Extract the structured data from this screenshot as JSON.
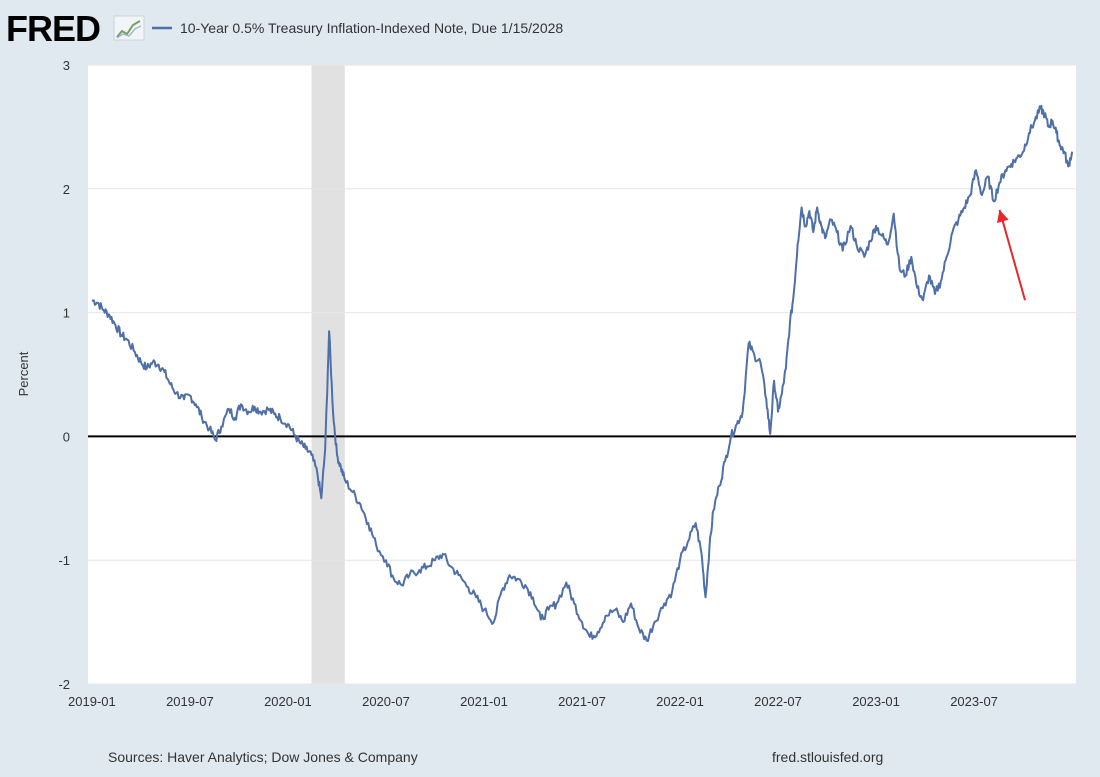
{
  "header": {
    "logo_text": "FRED",
    "legend_label": "10-Year 0.5% Treasury Inflation-Indexed Note, Due 1/15/2028"
  },
  "footer": {
    "sources": "Sources: Haver Analytics; Dow Jones & Company",
    "site": "fred.stlouisfed.org"
  },
  "colors": {
    "background": "#e1e9f0",
    "plot_background": "#ffffff",
    "series": "#4e6fa8",
    "recession_band": "#e1e1e1",
    "zero_line": "#000000",
    "annotation_arrow": "#e8262b",
    "text": "#333333"
  },
  "chart_data": {
    "type": "line",
    "title": "10-Year 0.5% Treasury Inflation-Indexed Note, Due 1/15/2028",
    "xlabel": "",
    "ylabel": "Percent",
    "xlim": [
      2018.98,
      2024.02
    ],
    "ylim": [
      -2,
      3
    ],
    "yticks": [
      -2,
      -1,
      0,
      1,
      2,
      3
    ],
    "xticks": [
      {
        "label": "2019-01",
        "t": 2019.0
      },
      {
        "label": "2019-07",
        "t": 2019.5
      },
      {
        "label": "2020-01",
        "t": 2020.0
      },
      {
        "label": "2020-07",
        "t": 2020.5
      },
      {
        "label": "2021-01",
        "t": 2021.0
      },
      {
        "label": "2021-07",
        "t": 2021.5
      },
      {
        "label": "2022-01",
        "t": 2022.0
      },
      {
        "label": "2022-07",
        "t": 2022.5
      },
      {
        "label": "2023-01",
        "t": 2023.0
      },
      {
        "label": "2023-07",
        "t": 2023.5
      }
    ],
    "grid": "horizontal",
    "recession": {
      "start": 2020.12,
      "end": 2020.29
    },
    "reference_line": 0,
    "annotation": {
      "type": "arrow",
      "from": [
        2023.76,
        1.1
      ],
      "to": [
        2023.63,
        1.83
      ]
    },
    "series": [
      {
        "name": "10-Year 0.5% Treasury Inflation-Indexed Note, Due 1/15/2028",
        "x": [
          2019.0,
          2019.03,
          2019.06,
          2019.09,
          2019.12,
          2019.15,
          2019.18,
          2019.22,
          2019.25,
          2019.28,
          2019.31,
          2019.34,
          2019.37,
          2019.4,
          2019.43,
          2019.47,
          2019.5,
          2019.53,
          2019.56,
          2019.6,
          2019.63,
          2019.66,
          2019.7,
          2019.73,
          2019.76,
          2019.8,
          2019.83,
          2019.86,
          2019.9,
          2019.93,
          2019.96,
          2020.0,
          2020.03,
          2020.06,
          2020.09,
          2020.12,
          2020.15,
          2020.17,
          2020.19,
          2020.21,
          2020.23,
          2020.25,
          2020.27,
          2020.29,
          2020.33,
          2020.37,
          2020.41,
          2020.45,
          2020.5,
          2020.54,
          2020.58,
          2020.62,
          2020.67,
          2020.71,
          2020.75,
          2020.79,
          2020.83,
          2020.87,
          2020.92,
          2020.96,
          2021.0,
          2021.05,
          2021.09,
          2021.13,
          2021.17,
          2021.21,
          2021.25,
          2021.29,
          2021.33,
          2021.37,
          2021.42,
          2021.46,
          2021.5,
          2021.54,
          2021.58,
          2021.62,
          2021.67,
          2021.71,
          2021.75,
          2021.79,
          2021.83,
          2021.87,
          2021.92,
          2021.96,
          2022.0,
          2022.04,
          2022.08,
          2022.11,
          2022.13,
          2022.15,
          2022.17,
          2022.2,
          2022.23,
          2022.26,
          2022.29,
          2022.32,
          2022.35,
          2022.38,
          2022.41,
          2022.44,
          2022.46,
          2022.48,
          2022.5,
          2022.52,
          2022.54,
          2022.56,
          2022.58,
          2022.6,
          2022.62,
          2022.64,
          2022.66,
          2022.68,
          2022.7,
          2022.72,
          2022.74,
          2022.77,
          2022.8,
          2022.83,
          2022.87,
          2022.9,
          2022.94,
          2022.97,
          2023.0,
          2023.03,
          2023.06,
          2023.09,
          2023.12,
          2023.15,
          2023.18,
          2023.21,
          2023.24,
          2023.27,
          2023.3,
          2023.33,
          2023.36,
          2023.39,
          2023.42,
          2023.45,
          2023.48,
          2023.51,
          2023.54,
          2023.57,
          2023.6,
          2023.63,
          2023.66,
          2023.69,
          2023.72,
          2023.75,
          2023.78,
          2023.81,
          2023.84,
          2023.86,
          2023.88,
          2023.9,
          2023.92,
          2023.94,
          2023.96,
          2023.98,
          2024.0
        ],
        "y": [
          1.1,
          1.08,
          1.02,
          0.98,
          0.9,
          0.82,
          0.78,
          0.68,
          0.6,
          0.55,
          0.6,
          0.58,
          0.52,
          0.42,
          0.35,
          0.3,
          0.33,
          0.26,
          0.16,
          0.06,
          -0.03,
          0.08,
          0.22,
          0.15,
          0.26,
          0.2,
          0.24,
          0.2,
          0.22,
          0.18,
          0.15,
          0.1,
          0.02,
          -0.05,
          -0.1,
          -0.15,
          -0.3,
          -0.5,
          -0.1,
          0.85,
          0.2,
          -0.15,
          -0.25,
          -0.35,
          -0.45,
          -0.55,
          -0.7,
          -0.88,
          -1.0,
          -1.15,
          -1.2,
          -1.12,
          -1.08,
          -1.05,
          -1.0,
          -0.95,
          -1.05,
          -1.12,
          -1.22,
          -1.3,
          -1.4,
          -1.5,
          -1.25,
          -1.12,
          -1.15,
          -1.2,
          -1.3,
          -1.48,
          -1.4,
          -1.35,
          -1.18,
          -1.35,
          -1.5,
          -1.62,
          -1.58,
          -1.45,
          -1.4,
          -1.5,
          -1.35,
          -1.55,
          -1.65,
          -1.5,
          -1.35,
          -1.25,
          -1.0,
          -0.85,
          -0.7,
          -0.95,
          -1.3,
          -0.9,
          -0.6,
          -0.4,
          -0.2,
          0.0,
          0.1,
          0.2,
          0.75,
          0.65,
          0.6,
          0.3,
          0.02,
          0.45,
          0.2,
          0.35,
          0.55,
          0.9,
          1.15,
          1.55,
          1.85,
          1.7,
          1.82,
          1.65,
          1.85,
          1.7,
          1.6,
          1.75,
          1.65,
          1.5,
          1.7,
          1.55,
          1.45,
          1.58,
          1.7,
          1.62,
          1.55,
          1.8,
          1.35,
          1.3,
          1.45,
          1.2,
          1.1,
          1.3,
          1.15,
          1.25,
          1.45,
          1.65,
          1.75,
          1.85,
          1.95,
          2.15,
          1.95,
          2.1,
          1.9,
          2.05,
          2.15,
          2.2,
          2.25,
          2.3,
          2.45,
          2.55,
          2.65,
          2.6,
          2.5,
          2.55,
          2.45,
          2.35,
          2.3,
          2.18,
          2.3
        ]
      }
    ]
  }
}
